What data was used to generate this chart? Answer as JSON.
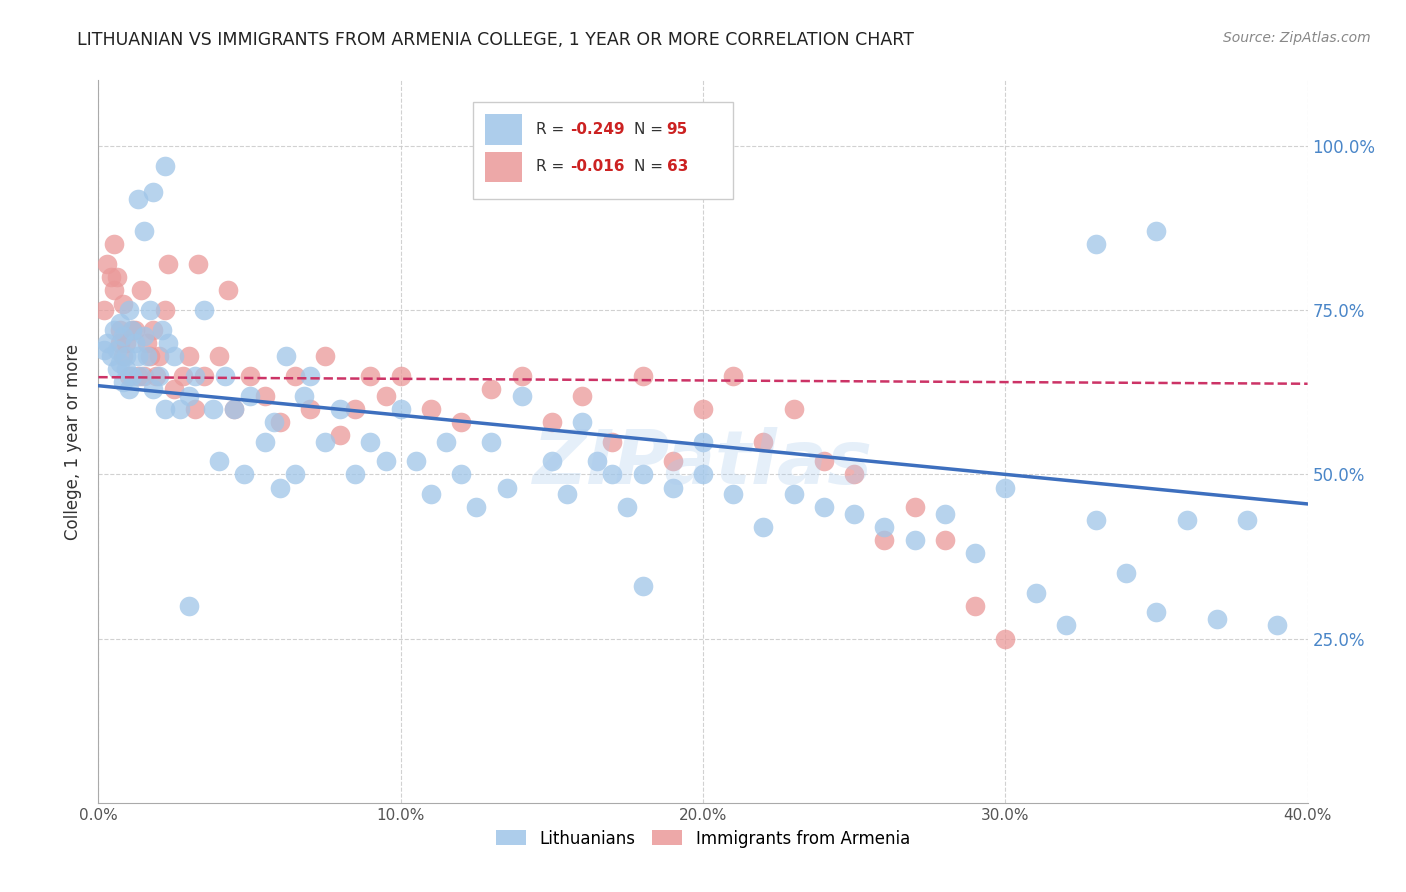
{
  "title": "LITHUANIAN VS IMMIGRANTS FROM ARMENIA COLLEGE, 1 YEAR OR MORE CORRELATION CHART",
  "source": "Source: ZipAtlas.com",
  "ylabel": "College, 1 year or more",
  "xlim": [
    0.0,
    0.4
  ],
  "ylim": [
    0.0,
    1.1
  ],
  "xtick_labels": [
    "0.0%",
    "10.0%",
    "20.0%",
    "30.0%",
    "40.0%"
  ],
  "xtick_values": [
    0.0,
    0.1,
    0.2,
    0.3,
    0.4
  ],
  "ytick_labels": [
    "25.0%",
    "50.0%",
    "75.0%",
    "100.0%"
  ],
  "ytick_values": [
    0.25,
    0.5,
    0.75,
    1.0
  ],
  "blue_color": "#9fc5e8",
  "pink_color": "#ea9999",
  "blue_line_color": "#3d6fbe",
  "pink_line_color": "#cc3366",
  "grid_color": "#cccccc",
  "background_color": "#ffffff",
  "watermark": "ZIPatlas",
  "blue_scatter_x": [
    0.002,
    0.003,
    0.004,
    0.005,
    0.006,
    0.006,
    0.007,
    0.007,
    0.008,
    0.008,
    0.009,
    0.009,
    0.01,
    0.01,
    0.011,
    0.011,
    0.012,
    0.013,
    0.014,
    0.015,
    0.016,
    0.017,
    0.018,
    0.02,
    0.021,
    0.022,
    0.023,
    0.025,
    0.027,
    0.03,
    0.032,
    0.035,
    0.038,
    0.04,
    0.042,
    0.045,
    0.048,
    0.05,
    0.055,
    0.058,
    0.06,
    0.062,
    0.065,
    0.068,
    0.07,
    0.075,
    0.08,
    0.085,
    0.09,
    0.095,
    0.1,
    0.105,
    0.11,
    0.115,
    0.12,
    0.125,
    0.13,
    0.135,
    0.14,
    0.15,
    0.155,
    0.16,
    0.165,
    0.17,
    0.175,
    0.18,
    0.19,
    0.2,
    0.21,
    0.22,
    0.23,
    0.24,
    0.25,
    0.26,
    0.27,
    0.28,
    0.29,
    0.3,
    0.31,
    0.32,
    0.33,
    0.34,
    0.35,
    0.36,
    0.37,
    0.38,
    0.39,
    0.33,
    0.35,
    0.18,
    0.2,
    0.03,
    0.015,
    0.018,
    0.022,
    0.013
  ],
  "blue_scatter_y": [
    0.69,
    0.7,
    0.68,
    0.72,
    0.66,
    0.69,
    0.73,
    0.67,
    0.71,
    0.64,
    0.66,
    0.68,
    0.63,
    0.75,
    0.72,
    0.65,
    0.7,
    0.68,
    0.65,
    0.71,
    0.68,
    0.75,
    0.63,
    0.65,
    0.72,
    0.6,
    0.7,
    0.68,
    0.6,
    0.62,
    0.65,
    0.75,
    0.6,
    0.52,
    0.65,
    0.6,
    0.5,
    0.62,
    0.55,
    0.58,
    0.48,
    0.68,
    0.5,
    0.62,
    0.65,
    0.55,
    0.6,
    0.5,
    0.55,
    0.52,
    0.6,
    0.52,
    0.47,
    0.55,
    0.5,
    0.45,
    0.55,
    0.48,
    0.62,
    0.52,
    0.47,
    0.58,
    0.52,
    0.5,
    0.45,
    0.5,
    0.48,
    0.55,
    0.47,
    0.42,
    0.47,
    0.45,
    0.44,
    0.42,
    0.4,
    0.44,
    0.38,
    0.48,
    0.32,
    0.27,
    0.43,
    0.35,
    0.29,
    0.43,
    0.28,
    0.43,
    0.27,
    0.85,
    0.87,
    0.33,
    0.5,
    0.3,
    0.87,
    0.93,
    0.97,
    0.92
  ],
  "pink_scatter_x": [
    0.002,
    0.003,
    0.004,
    0.005,
    0.005,
    0.006,
    0.007,
    0.007,
    0.008,
    0.008,
    0.009,
    0.01,
    0.011,
    0.012,
    0.013,
    0.014,
    0.015,
    0.016,
    0.017,
    0.018,
    0.019,
    0.02,
    0.022,
    0.025,
    0.028,
    0.03,
    0.032,
    0.035,
    0.04,
    0.045,
    0.05,
    0.055,
    0.06,
    0.065,
    0.07,
    0.075,
    0.08,
    0.085,
    0.09,
    0.095,
    0.1,
    0.11,
    0.12,
    0.13,
    0.14,
    0.15,
    0.16,
    0.17,
    0.18,
    0.19,
    0.2,
    0.21,
    0.22,
    0.23,
    0.24,
    0.25,
    0.26,
    0.27,
    0.28,
    0.29,
    0.3,
    0.023,
    0.033,
    0.043
  ],
  "pink_scatter_y": [
    0.75,
    0.82,
    0.8,
    0.85,
    0.78,
    0.8,
    0.72,
    0.7,
    0.68,
    0.76,
    0.7,
    0.65,
    0.72,
    0.72,
    0.65,
    0.78,
    0.65,
    0.7,
    0.68,
    0.72,
    0.65,
    0.68,
    0.75,
    0.63,
    0.65,
    0.68,
    0.6,
    0.65,
    0.68,
    0.6,
    0.65,
    0.62,
    0.58,
    0.65,
    0.6,
    0.68,
    0.56,
    0.6,
    0.65,
    0.62,
    0.65,
    0.6,
    0.58,
    0.63,
    0.65,
    0.58,
    0.62,
    0.55,
    0.65,
    0.52,
    0.6,
    0.65,
    0.55,
    0.6,
    0.52,
    0.5,
    0.4,
    0.45,
    0.4,
    0.3,
    0.25,
    0.82,
    0.82,
    0.78
  ],
  "blue_trend_x": [
    0.0,
    0.4
  ],
  "blue_trend_y": [
    0.635,
    0.455
  ],
  "pink_trend_x": [
    0.0,
    0.4
  ],
  "pink_trend_y": [
    0.648,
    0.638
  ]
}
